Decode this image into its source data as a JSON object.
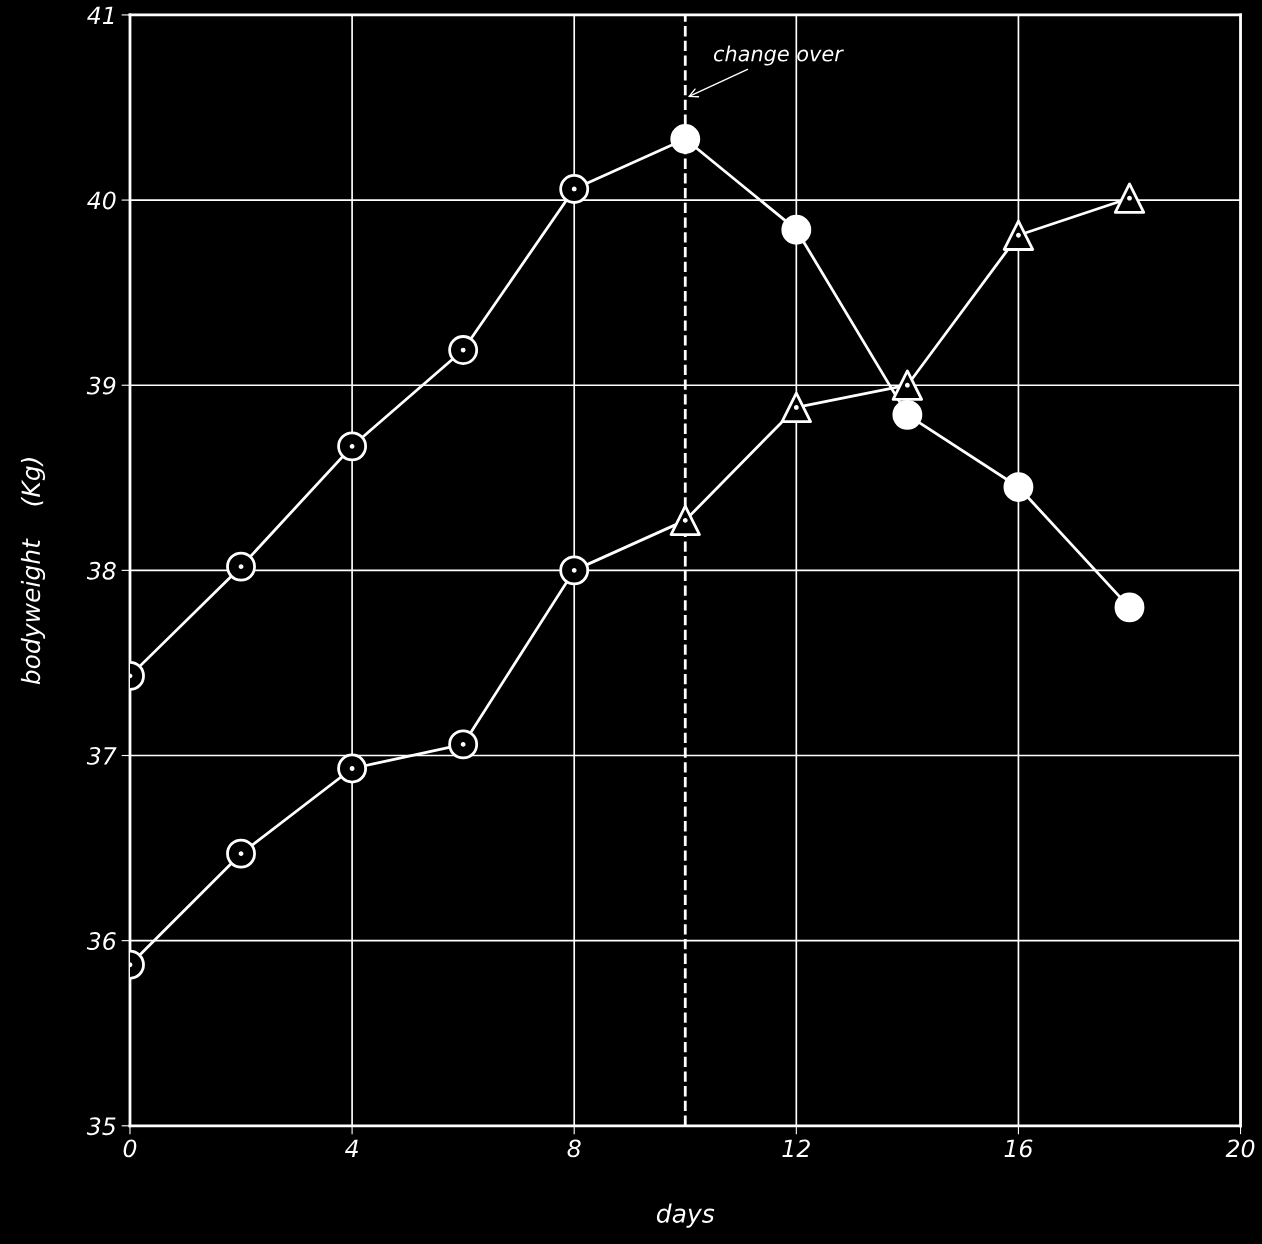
{
  "chart_data": {
    "type": "line",
    "xlabel": "days",
    "ylabel": "bodyweight    (Kg)",
    "xlim": [
      0,
      20
    ],
    "xticks": [
      0,
      4,
      8,
      12,
      16,
      20
    ],
    "ylim": [
      35,
      41
    ],
    "yticks": [
      35,
      36,
      37,
      38,
      39,
      40,
      41
    ],
    "grid": true,
    "line_style": "solid",
    "ref_lines": [
      {
        "axis": "x",
        "value": 10,
        "label": "change over",
        "color": "#ffffff",
        "line_style": "dashed"
      }
    ],
    "series": [
      {
        "color": "#ffffff",
        "marker": "circle",
        "colors": [
          "#000000",
          "#000000",
          "#000000",
          "#000000",
          "#000000",
          "#ffffff",
          "#ffffff",
          "#ffffff",
          "#ffffff",
          "#ffffff"
        ],
        "x": [
          0,
          2,
          4,
          6,
          8,
          10,
          12,
          14,
          16,
          18
        ],
        "values": [
          37.43,
          38.02,
          38.67,
          39.19,
          40.06,
          40.33,
          39.84,
          38.84,
          38.45,
          37.8
        ]
      },
      {
        "color": "#ffffff",
        "marker": "circle",
        "colors": [
          "#000000",
          "#000000",
          "#000000",
          "#000000",
          "#000000",
          null,
          null,
          null,
          null,
          null
        ],
        "x": [
          0,
          2,
          4,
          6,
          8,
          10,
          12,
          14,
          16,
          18
        ],
        "values": [
          35.87,
          36.47,
          36.93,
          37.06,
          38.0,
          38.27,
          38.88,
          39.0,
          39.81,
          40.01
        ]
      },
      {
        "type": "scatter",
        "color": "#ffffff",
        "colors": [
          "#000000",
          "#000000",
          "#000000",
          "#000000",
          "#000000"
        ],
        "marker": "triangle",
        "x": [
          10,
          12,
          14,
          16,
          18
        ],
        "values": [
          38.27,
          38.88,
          39.0,
          39.81,
          40.01
        ]
      }
    ]
  }
}
